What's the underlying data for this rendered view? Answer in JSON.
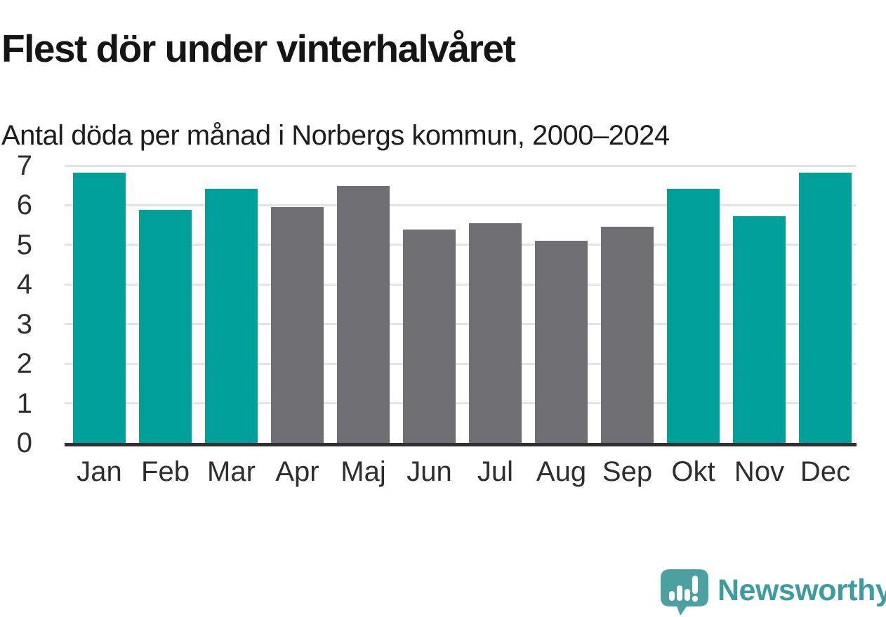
{
  "chart_data": {
    "type": "bar",
    "title": "Flest dör under vinterhalvåret",
    "subtitle": "Antal döda per månad i Norbergs kommun, 2000–2024",
    "categories": [
      "Jan",
      "Feb",
      "Mar",
      "Apr",
      "Maj",
      "Jun",
      "Jul",
      "Aug",
      "Sep",
      "Okt",
      "Nov",
      "Dec"
    ],
    "values": [
      6.83,
      5.88,
      6.41,
      5.95,
      6.49,
      5.38,
      5.54,
      5.1,
      5.46,
      6.41,
      5.72,
      6.83
    ],
    "bar_colors": [
      "teal",
      "teal",
      "teal",
      "gray",
      "gray",
      "gray",
      "gray",
      "gray",
      "gray",
      "teal",
      "teal",
      "teal"
    ],
    "palette": {
      "teal": "#00A09A",
      "gray": "#6E6E73"
    },
    "xlabel": "",
    "ylabel": "",
    "ylim": [
      0,
      7
    ],
    "yticks": [
      0,
      1,
      2,
      3,
      4,
      5,
      6,
      7
    ],
    "grid": true,
    "legend": false,
    "gridline_color": "#E4E4E4",
    "axis_line_color": "#303030"
  },
  "footer": {
    "brand": "Newsworthy",
    "brand_color": "#3F9C9E",
    "logo_icon": "newsworthy-speech-bubble-bar-chart-icon",
    "logo_color": "#4BA0A2"
  }
}
